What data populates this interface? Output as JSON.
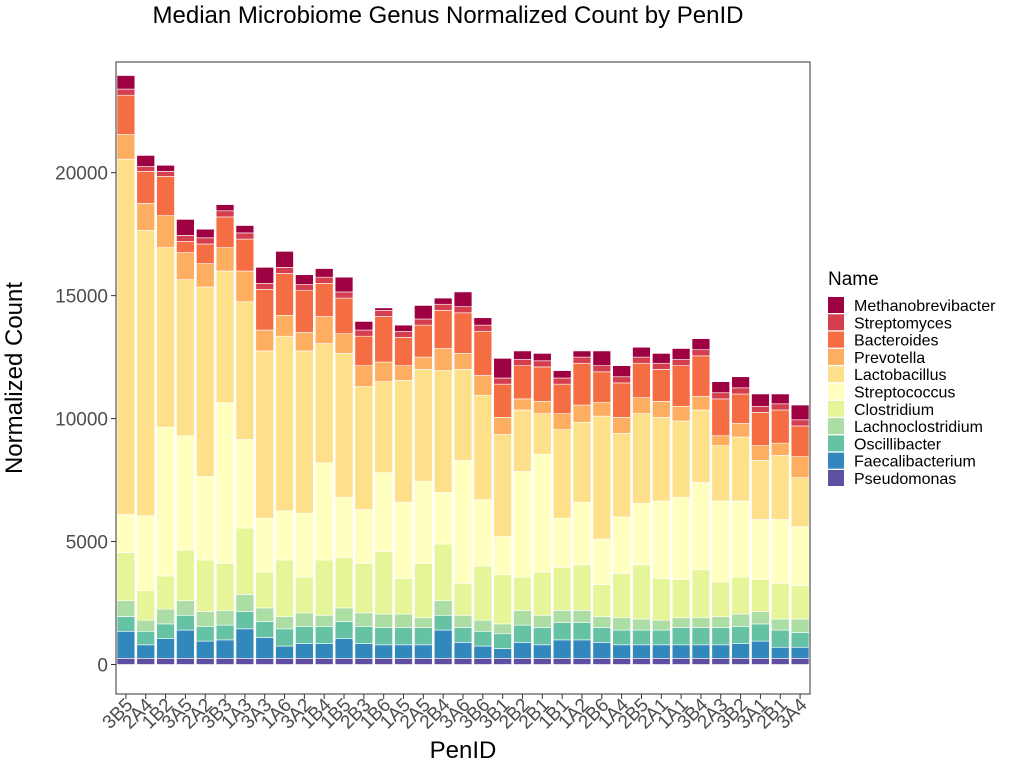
{
  "chart_data": {
    "type": "bar",
    "stacked": true,
    "title": "Median Microbiome Genus Normalized Count by PenID",
    "xlabel": "PenID",
    "ylabel": "Normalized Count",
    "ylim": [
      -1200,
      24500
    ],
    "yticks": [
      0,
      5000,
      10000,
      15000,
      20000
    ],
    "ytick_labels": [
      "0",
      "5000",
      "10000",
      "15000",
      "20000"
    ],
    "legend_title": "Name",
    "legend_position": "right",
    "grid": false,
    "categories": [
      "3B5",
      "2A4",
      "1B2",
      "3A5",
      "2A2",
      "3B3",
      "1A3",
      "3A3",
      "1A6",
      "3A2",
      "1B4",
      "1B5",
      "2B3",
      "1B6",
      "1A5",
      "2A5",
      "2B4",
      "3A6",
      "3B6",
      "3B1",
      "2B2",
      "2B1",
      "1B1",
      "1A2",
      "2B6",
      "1A4",
      "2B5",
      "2A1",
      "1A1",
      "3B4",
      "2A3",
      "3B2",
      "3A1",
      "2B1",
      "3A4"
    ],
    "series": [
      {
        "name": "Pseudomonas",
        "color": "#5E4FA2",
        "values": [
          250,
          250,
          250,
          250,
          250,
          250,
          250,
          250,
          250,
          250,
          250,
          250,
          250,
          250,
          250,
          250,
          250,
          250,
          250,
          250,
          250,
          250,
          250,
          250,
          250,
          250,
          250,
          250,
          250,
          250,
          250,
          250,
          250,
          250,
          250
        ]
      },
      {
        "name": "Faecalibacterium",
        "color": "#3288BD",
        "values": [
          1100,
          550,
          800,
          1150,
          700,
          750,
          1200,
          850,
          500,
          600,
          600,
          800,
          600,
          550,
          550,
          550,
          1150,
          650,
          500,
          400,
          650,
          550,
          750,
          750,
          650,
          550,
          550,
          550,
          550,
          550,
          550,
          600,
          700,
          450,
          450
        ]
      },
      {
        "name": "Oscillibacter",
        "color": "#66C2A5",
        "values": [
          600,
          550,
          600,
          600,
          600,
          600,
          700,
          650,
          700,
          700,
          700,
          700,
          700,
          700,
          700,
          700,
          600,
          600,
          600,
          600,
          700,
          700,
          700,
          700,
          600,
          600,
          600,
          600,
          700,
          700,
          700,
          700,
          700,
          700,
          600
        ]
      },
      {
        "name": "Lachnoclostridium",
        "color": "#ABDDA4",
        "values": [
          650,
          450,
          600,
          600,
          600,
          600,
          700,
          550,
          500,
          550,
          450,
          550,
          550,
          550,
          550,
          400,
          600,
          500,
          450,
          400,
          600,
          500,
          500,
          500,
          450,
          500,
          450,
          400,
          400,
          400,
          450,
          500,
          500,
          450,
          550
        ]
      },
      {
        "name": "Clostridium",
        "color": "#E6F598",
        "values": [
          1950,
          1200,
          1350,
          2050,
          2100,
          1900,
          2700,
          1450,
          2300,
          1450,
          2250,
          2050,
          2000,
          2550,
          1450,
          2200,
          2300,
          1300,
          2200,
          2000,
          1350,
          1750,
          1750,
          1850,
          1300,
          1800,
          2200,
          1700,
          1550,
          1950,
          1400,
          1500,
          1300,
          1450,
          1350
        ]
      },
      {
        "name": "Streptococcus",
        "color": "#FFFFBF",
        "values": [
          1550,
          3050,
          6050,
          4650,
          3400,
          6550,
          3600,
          2200,
          2000,
          2600,
          3950,
          2450,
          2200,
          3200,
          3100,
          3350,
          2100,
          5000,
          2700,
          1550,
          4300,
          4800,
          2000,
          2550,
          1850,
          2300,
          2500,
          3150,
          3350,
          3550,
          3300,
          3100,
          2450,
          2600,
          2400
        ]
      },
      {
        "name": "Lactobacillus",
        "color": "#FEE08B",
        "values": [
          14450,
          11600,
          7300,
          6350,
          7700,
          5350,
          5600,
          6800,
          7100,
          6600,
          4850,
          5850,
          5000,
          3700,
          4950,
          4550,
          4950,
          3700,
          4250,
          4150,
          2500,
          1650,
          3600,
          3250,
          5000,
          3400,
          3650,
          3400,
          3100,
          2950,
          2250,
          2600,
          2400,
          2600,
          2000
        ]
      },
      {
        "name": "Prevotella",
        "color": "#FDAE61",
        "values": [
          1000,
          1100,
          1300,
          1100,
          950,
          950,
          1250,
          850,
          850,
          750,
          1100,
          800,
          850,
          800,
          600,
          500,
          900,
          650,
          800,
          700,
          450,
          500,
          650,
          700,
          550,
          650,
          650,
          650,
          600,
          550,
          400,
          550,
          600,
          500,
          850
        ]
      },
      {
        "name": "Bacteroides",
        "color": "#F46D43",
        "values": [
          1600,
          1300,
          1600,
          450,
          800,
          1250,
          1300,
          1650,
          1700,
          1700,
          1350,
          1450,
          1200,
          1850,
          1150,
          1300,
          1550,
          1650,
          1800,
          1350,
          1350,
          1400,
          1200,
          1700,
          1250,
          1400,
          1400,
          1300,
          1650,
          1650,
          1500,
          1200,
          1350,
          1350,
          1250
        ]
      },
      {
        "name": "Streptomyces",
        "color": "#D53E4F",
        "values": [
          250,
          200,
          200,
          250,
          250,
          250,
          250,
          250,
          250,
          250,
          250,
          250,
          250,
          250,
          250,
          250,
          250,
          250,
          250,
          250,
          250,
          250,
          250,
          250,
          250,
          250,
          250,
          250,
          250,
          250,
          250,
          250,
          250,
          250,
          250
        ]
      },
      {
        "name": "Methanobrevibacter",
        "color": "#9E0142",
        "values": [
          550,
          450,
          250,
          650,
          350,
          250,
          300,
          650,
          650,
          400,
          350,
          600,
          350,
          100,
          250,
          550,
          250,
          600,
          300,
          800,
          350,
          300,
          300,
          250,
          600,
          450,
          400,
          400,
          450,
          450,
          450,
          450,
          500,
          400,
          600
        ]
      }
    ]
  }
}
